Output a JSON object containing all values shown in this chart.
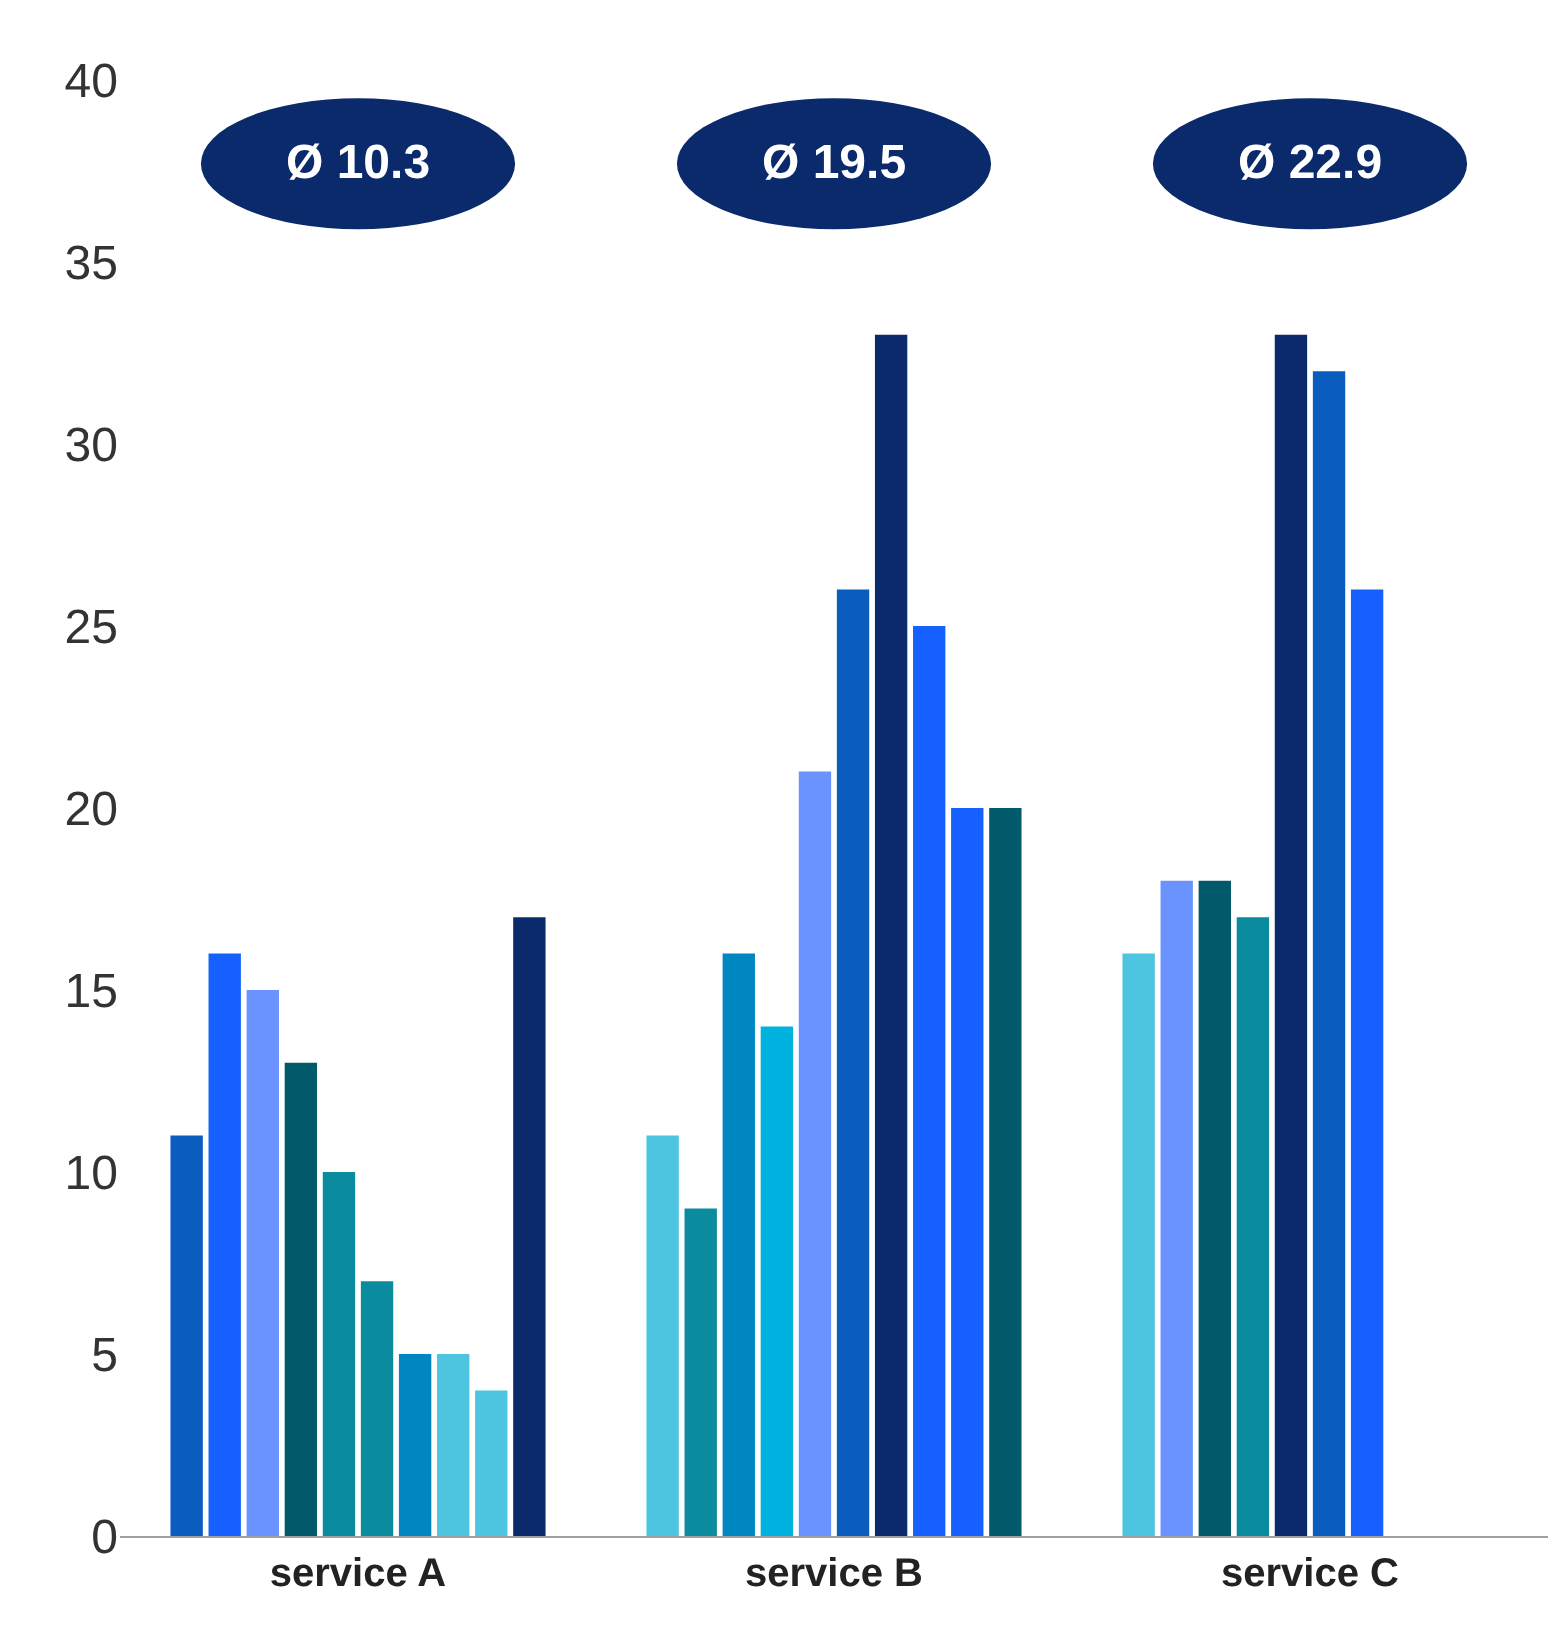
{
  "chart_data": {
    "type": "bar",
    "categories": [
      "service A",
      "service B",
      "service C"
    ],
    "series": [
      {
        "values": [
          11,
          11,
          16
        ],
        "colors": [
          "#0a5cbf",
          "#4dc4e0",
          "#4dc4e0"
        ]
      },
      {
        "values": [
          16,
          9,
          18
        ],
        "colors": [
          "#1560ff",
          "#0a8b9e",
          "#6b93ff"
        ]
      },
      {
        "values": [
          15,
          16,
          18
        ],
        "colors": [
          "#6b93ff",
          "#0086c0",
          "#005a6b"
        ]
      },
      {
        "values": [
          13,
          14,
          17
        ],
        "colors": [
          "#005a6b",
          "#00b2e0",
          "#0a8b9e"
        ]
      },
      {
        "values": [
          10,
          21,
          33
        ],
        "colors": [
          "#0a8b9e",
          "#6b93ff",
          "#0b2a6b"
        ]
      },
      {
        "values": [
          7,
          26,
          32
        ],
        "colors": [
          "#0a8b9e",
          "#0a5cbf",
          "#0a5cbf"
        ]
      },
      {
        "values": [
          5,
          33,
          26
        ],
        "colors": [
          "#0086c0",
          "#0b2a6b",
          "#1560ff"
        ]
      },
      {
        "values": [
          5,
          25,
          null
        ],
        "colors": [
          "#4dc4e0",
          "#1560ff",
          "#1560ff"
        ]
      },
      {
        "values": [
          4,
          20,
          null
        ],
        "colors": [
          "#4dc4e0",
          "#1560ff",
          "#1560ff"
        ]
      },
      {
        "values": [
          17,
          20,
          null
        ],
        "colors": [
          "#0b2a6b",
          "#005a6b",
          "#005a6b"
        ]
      }
    ],
    "annotations": [
      "Ø 10.3",
      "Ø 19.5",
      "Ø 22.9"
    ],
    "ylim": [
      0,
      40
    ],
    "yticks": [
      0,
      5,
      10,
      15,
      20,
      25,
      30,
      35,
      40
    ]
  }
}
